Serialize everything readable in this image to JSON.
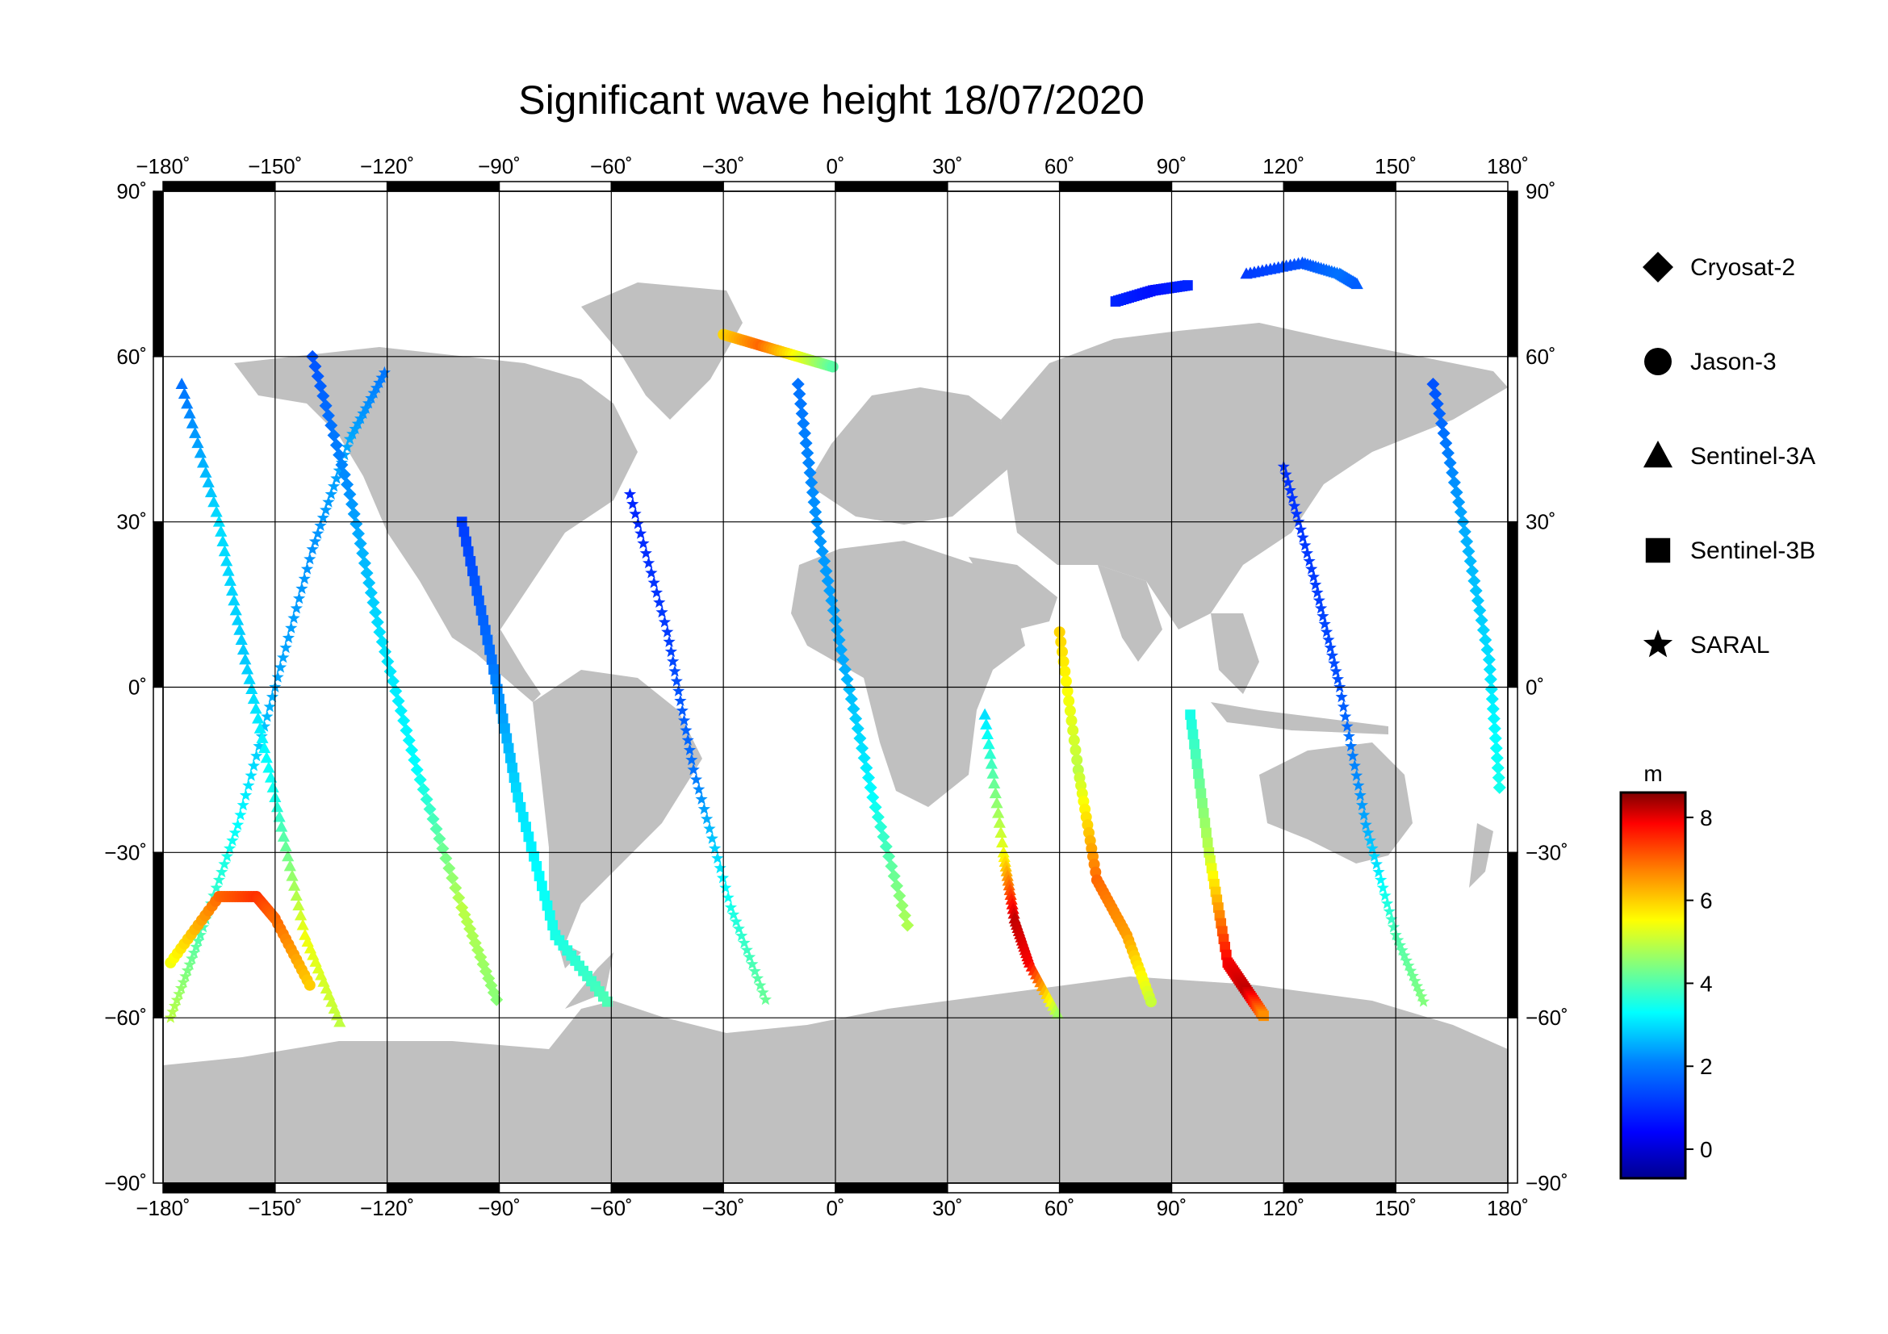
{
  "title": "Significant wave height 18/07/2020",
  "lon_ticks": [
    {
      "v": -180,
      "label": "−180˚"
    },
    {
      "v": -150,
      "label": "−150˚"
    },
    {
      "v": -120,
      "label": "−120˚"
    },
    {
      "v": -90,
      "label": "−90˚"
    },
    {
      "v": -60,
      "label": "−60˚"
    },
    {
      "v": -30,
      "label": "−30˚"
    },
    {
      "v": 0,
      "label": "0˚"
    },
    {
      "v": 30,
      "label": "30˚"
    },
    {
      "v": 60,
      "label": "60˚"
    },
    {
      "v": 90,
      "label": "90˚"
    },
    {
      "v": 120,
      "label": "120˚"
    },
    {
      "v": 150,
      "label": "150˚"
    },
    {
      "v": 180,
      "label": "180˚"
    }
  ],
  "lat_ticks": [
    {
      "v": 90,
      "label": "90˚"
    },
    {
      "v": 60,
      "label": "60˚"
    },
    {
      "v": 30,
      "label": "30˚"
    },
    {
      "v": 0,
      "label": "0˚"
    },
    {
      "v": -30,
      "label": "−30˚"
    },
    {
      "v": -60,
      "label": "−60˚"
    },
    {
      "v": -90,
      "label": "−90˚"
    }
  ],
  "legend": [
    {
      "name": "Cryosat-2",
      "symbol": "diamond"
    },
    {
      "name": "Jason-3",
      "symbol": "circle"
    },
    {
      "name": "Sentinel-3A",
      "symbol": "triangle"
    },
    {
      "name": "Sentinel-3B",
      "symbol": "square"
    },
    {
      "name": "SARAL",
      "symbol": "star"
    }
  ],
  "colorbar": {
    "unit": "m",
    "min": -0.7,
    "max": 8.6,
    "ticks": [
      {
        "v": 8,
        "label": "8"
      },
      {
        "v": 6,
        "label": "6"
      },
      {
        "v": 4,
        "label": "4"
      },
      {
        "v": 2,
        "label": "2"
      },
      {
        "v": 0,
        "label": "0"
      }
    ],
    "colormap": [
      "#00008f",
      "#0000ff",
      "#0080ff",
      "#00ffff",
      "#80ff80",
      "#ffff00",
      "#ff8000",
      "#ff0000",
      "#800000"
    ]
  },
  "map_colors": {
    "land": "#c0c0c0",
    "ocean": "#ffffff",
    "grid": "#000000",
    "frame": "#000000"
  },
  "chart_data": {
    "type": "scatter",
    "projection": "equirectangular",
    "xlim": [
      -180,
      180
    ],
    "ylim": [
      -90,
      90
    ],
    "grid": true,
    "legend_position": "right",
    "tracks": [
      {
        "sat": "SARAL",
        "points": [
          [
            -178,
            -60,
            4.5
          ],
          [
            -170,
            -45,
            3.5
          ],
          [
            -160,
            -25,
            2.8
          ],
          [
            -150,
            0,
            2.0
          ],
          [
            -140,
            25,
            1.8
          ],
          [
            -130,
            45,
            2.0
          ],
          [
            -120,
            58,
            1.5
          ]
        ]
      },
      {
        "sat": "Sentinel-3A",
        "points": [
          [
            -175,
            55,
            1.5
          ],
          [
            -165,
            30,
            2.5
          ],
          [
            -158,
            5,
            2.3
          ],
          [
            -150,
            -20,
            3.0
          ],
          [
            -142,
            -45,
            5.0
          ],
          [
            -132,
            -62,
            4.5
          ]
        ]
      },
      {
        "sat": "Jason-3",
        "points": [
          [
            -178,
            -50,
            5.0
          ],
          [
            -165,
            -38,
            6.5
          ],
          [
            -155,
            -38,
            7.0
          ],
          [
            -150,
            -42,
            6.5
          ],
          [
            -140,
            -55,
            5.5
          ]
        ]
      },
      {
        "sat": "Cryosat-2",
        "points": [
          [
            -140,
            60,
            1.2
          ],
          [
            -130,
            35,
            1.8
          ],
          [
            -122,
            10,
            2.5
          ],
          [
            -112,
            -15,
            2.8
          ],
          [
            -100,
            -40,
            4.5
          ],
          [
            -90,
            -58,
            4.0
          ]
        ]
      },
      {
        "sat": "Sentinel-3B",
        "points": [
          [
            -100,
            30,
            1.0
          ],
          [
            -92,
            5,
            1.5
          ],
          [
            -85,
            -20,
            2.5
          ],
          [
            -75,
            -45,
            3.0
          ],
          [
            -60,
            -58,
            3.5
          ]
        ]
      },
      {
        "sat": "SARAL",
        "points": [
          [
            -55,
            35,
            0.8
          ],
          [
            -45,
            10,
            1.0
          ],
          [
            -38,
            -15,
            1.5
          ],
          [
            -28,
            -40,
            3.0
          ],
          [
            -18,
            -58,
            3.8
          ]
        ]
      },
      {
        "sat": "Jason-3",
        "points": [
          [
            -30,
            64,
            5.5
          ],
          [
            -20,
            62,
            6.5
          ],
          [
            -10,
            60,
            5.0
          ],
          [
            0,
            58,
            3.5
          ]
        ]
      },
      {
        "sat": "Cryosat-2",
        "points": [
          [
            -10,
            55,
            1.5
          ],
          [
            -5,
            30,
            1.8
          ],
          [
            2,
            5,
            2.0
          ],
          [
            10,
            -20,
            2.8
          ],
          [
            20,
            -45,
            4.5
          ]
        ]
      },
      {
        "sat": "Sentinel-3A",
        "points": [
          [
            40,
            -5,
            2.5
          ],
          [
            45,
            -30,
            5.0
          ],
          [
            48,
            -42,
            8.0
          ],
          [
            52,
            -50,
            7.5
          ],
          [
            60,
            -60,
            4.0
          ]
        ]
      },
      {
        "sat": "Jason-3",
        "points": [
          [
            60,
            10,
            5.5
          ],
          [
            65,
            -15,
            4.5
          ],
          [
            70,
            -35,
            6.5
          ],
          [
            78,
            -45,
            6.0
          ],
          [
            85,
            -58,
            4.5
          ]
        ]
      },
      {
        "sat": "Sentinel-3B",
        "points": [
          [
            95,
            -5,
            3.0
          ],
          [
            100,
            -30,
            4.5
          ],
          [
            105,
            -50,
            7.5
          ],
          [
            110,
            -55,
            8.0
          ],
          [
            115,
            -60,
            6.0
          ]
        ]
      },
      {
        "sat": "SARAL",
        "points": [
          [
            120,
            40,
            0.9
          ],
          [
            128,
            20,
            1.0
          ],
          [
            135,
            0,
            1.2
          ],
          [
            142,
            -25,
            2.0
          ],
          [
            150,
            -45,
            3.5
          ],
          [
            158,
            -58,
            4.0
          ]
        ]
      },
      {
        "sat": "Cryosat-2",
        "points": [
          [
            160,
            55,
            1.2
          ],
          [
            168,
            30,
            2.0
          ],
          [
            175,
            5,
            2.5
          ],
          [
            178,
            -20,
            3.0
          ]
        ]
      },
      {
        "sat": "Sentinel-3A",
        "points": [
          [
            110,
            75,
            1.0
          ],
          [
            125,
            77,
            1.2
          ],
          [
            135,
            75,
            1.5
          ],
          [
            140,
            73,
            1.3
          ]
        ]
      },
      {
        "sat": "Sentinel-3B",
        "points": [
          [
            75,
            70,
            0.8
          ],
          [
            85,
            72,
            0.6
          ],
          [
            95,
            73,
            0.8
          ]
        ]
      }
    ]
  }
}
